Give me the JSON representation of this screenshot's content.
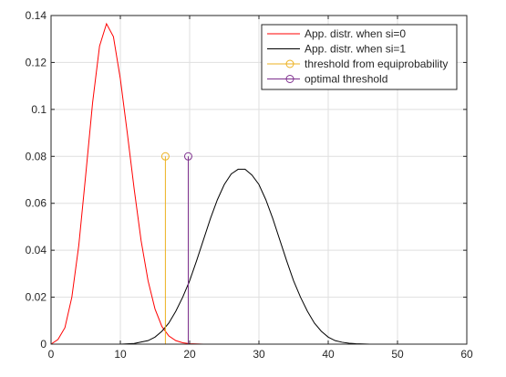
{
  "chart_data": {
    "type": "line",
    "title": "",
    "xlabel": "",
    "ylabel": "",
    "xlim": [
      0,
      60
    ],
    "ylim": [
      0,
      0.14
    ],
    "xticks": [
      0,
      10,
      20,
      30,
      40,
      50,
      60
    ],
    "yticks": [
      0,
      0.02,
      0.04,
      0.06,
      0.08,
      0.1,
      0.12,
      0.14
    ],
    "xtick_labels": [
      "0",
      "10",
      "20",
      "30",
      "40",
      "50",
      "60"
    ],
    "ytick_labels": [
      "0",
      "0.02",
      "0.04",
      "0.06",
      "0.08",
      "0.1",
      "0.12",
      "0.14"
    ],
    "grid": true,
    "legend_position": "top-right",
    "series": [
      {
        "name": "App. distr. when si=0",
        "kind": "line",
        "color": "#ff0000",
        "x": [
          0,
          1,
          2,
          3,
          4,
          5,
          6,
          7,
          8,
          9,
          10,
          11,
          12,
          13,
          14,
          15,
          16,
          17,
          18,
          19,
          20,
          22,
          25,
          30,
          40,
          50,
          60
        ],
        "y": [
          0,
          0.002,
          0.007,
          0.02,
          0.042,
          0.072,
          0.103,
          0.127,
          0.1365,
          0.131,
          0.113,
          0.09,
          0.066,
          0.044,
          0.027,
          0.015,
          0.0075,
          0.0035,
          0.0015,
          0.0006,
          0.0002,
          0,
          0,
          0,
          0,
          0,
          0
        ]
      },
      {
        "name": "App. distr. when si=1",
        "kind": "line",
        "color": "#000000",
        "x": [
          0,
          5,
          10,
          12,
          14,
          15,
          16,
          17,
          18,
          19,
          20,
          21,
          22,
          23,
          24,
          25,
          26,
          27,
          28,
          29,
          30,
          31,
          32,
          33,
          34,
          35,
          36,
          37,
          38,
          39,
          40,
          41,
          42,
          43,
          44,
          45,
          46,
          48,
          50,
          55,
          60
        ],
        "y": [
          0,
          0,
          0,
          0.0003,
          0.0015,
          0.003,
          0.0055,
          0.009,
          0.014,
          0.02,
          0.027,
          0.0355,
          0.0445,
          0.0535,
          0.0615,
          0.068,
          0.0725,
          0.0745,
          0.0745,
          0.072,
          0.068,
          0.0615,
          0.0535,
          0.0445,
          0.0355,
          0.027,
          0.02,
          0.014,
          0.009,
          0.0055,
          0.003,
          0.0015,
          0.0008,
          0.0004,
          0.0002,
          0.0001,
          0,
          0,
          0,
          0,
          0
        ]
      },
      {
        "name": "threshold from equiprobability",
        "kind": "stem",
        "color": "#edb120",
        "x": [
          16.5
        ],
        "y": [
          0.08
        ]
      },
      {
        "name": "optimal threshold",
        "kind": "stem",
        "color": "#7e2f8e",
        "x": [
          19.8
        ],
        "y": [
          0.08
        ]
      }
    ]
  }
}
